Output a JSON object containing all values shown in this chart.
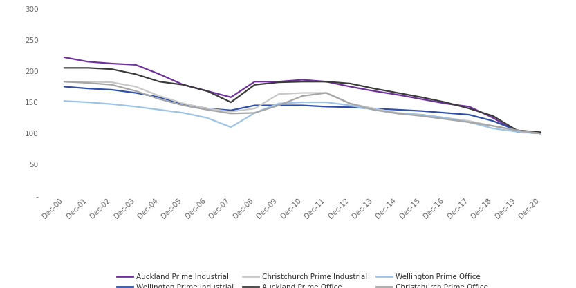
{
  "x_labels": [
    "Dec-00",
    "Dec-01",
    "Dec-02",
    "Dec-03",
    "Dec-04",
    "Dec-05",
    "Dec-06",
    "Dec-07",
    "Dec-08",
    "Dec-09",
    "Dec-10",
    "Dec-11",
    "Dec-12",
    "Dec-13",
    "Dec-14",
    "Dec-15",
    "Dec-16",
    "Dec-17",
    "Dec-18",
    "Dec-19",
    "Dec-20"
  ],
  "series_order": [
    "Auckland Prime Industrial",
    "Wellington Prime Industrial",
    "Christchurch Prime Industrial",
    "Auckland Prime Office",
    "Wellington Prime Office",
    "Christchurch Prime Office"
  ],
  "series": {
    "Auckland Prime Industrial": {
      "color": "#7030A0",
      "linewidth": 1.6,
      "values": [
        222,
        215,
        212,
        210,
        195,
        178,
        168,
        158,
        183,
        183,
        186,
        183,
        175,
        168,
        162,
        155,
        148,
        143,
        125,
        103,
        100
      ]
    },
    "Wellington Prime Industrial": {
      "color": "#2E4FAB",
      "linewidth": 1.6,
      "values": [
        175,
        172,
        170,
        165,
        158,
        147,
        140,
        137,
        145,
        145,
        145,
        143,
        142,
        140,
        138,
        136,
        133,
        130,
        120,
        105,
        100
      ]
    },
    "Christchurch Prime Industrial": {
      "color": "#C8C8C8",
      "linewidth": 1.6,
      "values": [
        183,
        183,
        182,
        175,
        160,
        148,
        140,
        135,
        140,
        163,
        165,
        165,
        148,
        140,
        133,
        130,
        125,
        120,
        112,
        105,
        100
      ]
    },
    "Auckland Prime Office": {
      "color": "#3B3B3B",
      "linewidth": 1.6,
      "values": [
        205,
        205,
        203,
        195,
        183,
        178,
        168,
        150,
        178,
        182,
        183,
        183,
        180,
        172,
        165,
        158,
        150,
        140,
        128,
        105,
        102
      ]
    },
    "Wellington Prime Office": {
      "color": "#9DC3E6",
      "linewidth": 1.6,
      "values": [
        152,
        150,
        147,
        143,
        138,
        133,
        125,
        110,
        133,
        148,
        150,
        150,
        145,
        138,
        132,
        130,
        125,
        118,
        108,
        103,
        100
      ]
    },
    "Christchurch Prime Office": {
      "color": "#A6A6A6",
      "linewidth": 1.6,
      "values": [
        183,
        181,
        178,
        168,
        155,
        145,
        138,
        132,
        133,
        145,
        160,
        165,
        148,
        138,
        132,
        128,
        123,
        118,
        112,
        105,
        100
      ]
    }
  },
  "ylim": [
    0,
    300
  ],
  "yticks": [
    0,
    50,
    100,
    150,
    200,
    250,
    300
  ],
  "legend_row1": [
    {
      "label": "Auckland Prime Industrial",
      "color": "#7030A0"
    },
    {
      "label": "Wellington Prime Industrial",
      "color": "#2E4FAB"
    },
    {
      "label": "Christchurch Prime Industrial",
      "color": "#C8C8C8"
    }
  ],
  "legend_row2": [
    {
      "label": "Auckland Prime Office",
      "color": "#3B3B3B"
    },
    {
      "label": "Wellington Prime Office",
      "color": "#9DC3E6"
    },
    {
      "label": "Christchurch Prime Office",
      "color": "#A6A6A6"
    }
  ],
  "background_color": "#FFFFFF"
}
